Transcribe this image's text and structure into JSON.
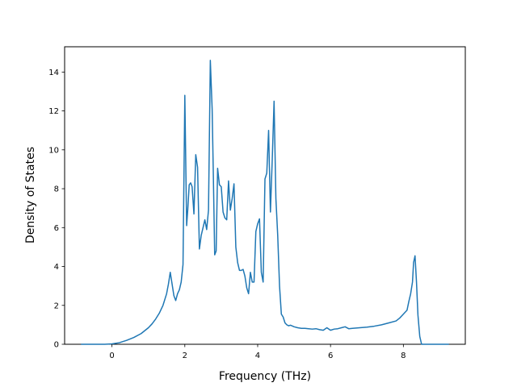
{
  "chart_data": {
    "type": "line",
    "xlabel": "Frequency (THz)",
    "ylabel": "Density of States",
    "xlim": [
      -1.3,
      9.7
    ],
    "ylim": [
      0,
      15.3
    ],
    "x_ticks": [
      0,
      2,
      4,
      6,
      8
    ],
    "y_ticks": [
      0,
      2,
      4,
      6,
      8,
      10,
      12,
      14
    ],
    "grid": false,
    "series": [
      {
        "color": "#1f77b4",
        "x": [
          -0.85,
          -0.5,
          -0.2,
          0.0,
          0.2,
          0.4,
          0.6,
          0.8,
          1.0,
          1.1,
          1.2,
          1.3,
          1.4,
          1.5,
          1.55,
          1.6,
          1.65,
          1.7,
          1.75,
          1.8,
          1.85,
          1.9,
          1.95,
          2.0,
          2.05,
          2.08,
          2.12,
          2.16,
          2.2,
          2.25,
          2.3,
          2.35,
          2.4,
          2.45,
          2.5,
          2.55,
          2.6,
          2.65,
          2.7,
          2.75,
          2.78,
          2.82,
          2.86,
          2.9,
          2.95,
          3.0,
          3.05,
          3.1,
          3.15,
          3.2,
          3.25,
          3.3,
          3.35,
          3.4,
          3.45,
          3.5,
          3.55,
          3.6,
          3.65,
          3.7,
          3.75,
          3.8,
          3.85,
          3.9,
          3.95,
          4.0,
          4.05,
          4.1,
          4.15,
          4.2,
          4.25,
          4.3,
          4.35,
          4.4,
          4.45,
          4.5,
          4.55,
          4.6,
          4.65,
          4.7,
          4.75,
          4.8,
          4.85,
          4.9,
          5.0,
          5.1,
          5.2,
          5.3,
          5.4,
          5.5,
          5.6,
          5.7,
          5.8,
          5.9,
          6.0,
          6.1,
          6.2,
          6.3,
          6.4,
          6.5,
          6.6,
          6.8,
          7.0,
          7.2,
          7.4,
          7.6,
          7.8,
          7.9,
          8.0,
          8.1,
          8.15,
          8.2,
          8.25,
          8.28,
          8.32,
          8.36,
          8.4,
          8.45,
          8.5,
          9.25
        ],
        "y": [
          0,
          0,
          0,
          0.02,
          0.08,
          0.2,
          0.35,
          0.55,
          0.85,
          1.05,
          1.3,
          1.6,
          2.0,
          2.6,
          3.1,
          3.7,
          3.1,
          2.5,
          2.25,
          2.6,
          2.8,
          3.2,
          4.1,
          12.8,
          6.1,
          6.9,
          8.2,
          8.3,
          8.1,
          6.7,
          9.75,
          9.1,
          4.9,
          5.6,
          6.0,
          6.4,
          5.9,
          6.9,
          14.6,
          12.1,
          9.0,
          4.6,
          4.8,
          9.05,
          8.2,
          8.1,
          6.8,
          6.5,
          6.4,
          8.4,
          6.9,
          7.5,
          8.25,
          5.0,
          4.2,
          3.8,
          3.8,
          3.85,
          3.5,
          2.9,
          2.6,
          3.7,
          3.2,
          3.2,
          5.8,
          6.2,
          6.45,
          3.7,
          3.2,
          8.5,
          8.8,
          11.0,
          6.8,
          9.5,
          12.5,
          7.5,
          5.6,
          3.0,
          1.55,
          1.4,
          1.1,
          1.0,
          0.95,
          0.98,
          0.9,
          0.85,
          0.82,
          0.82,
          0.8,
          0.78,
          0.8,
          0.75,
          0.72,
          0.85,
          0.72,
          0.78,
          0.8,
          0.85,
          0.9,
          0.8,
          0.82,
          0.85,
          0.88,
          0.93,
          1.0,
          1.1,
          1.2,
          1.35,
          1.55,
          1.75,
          2.2,
          2.6,
          3.2,
          4.2,
          4.55,
          3.2,
          1.5,
          0.4,
          0,
          0
        ]
      }
    ]
  }
}
